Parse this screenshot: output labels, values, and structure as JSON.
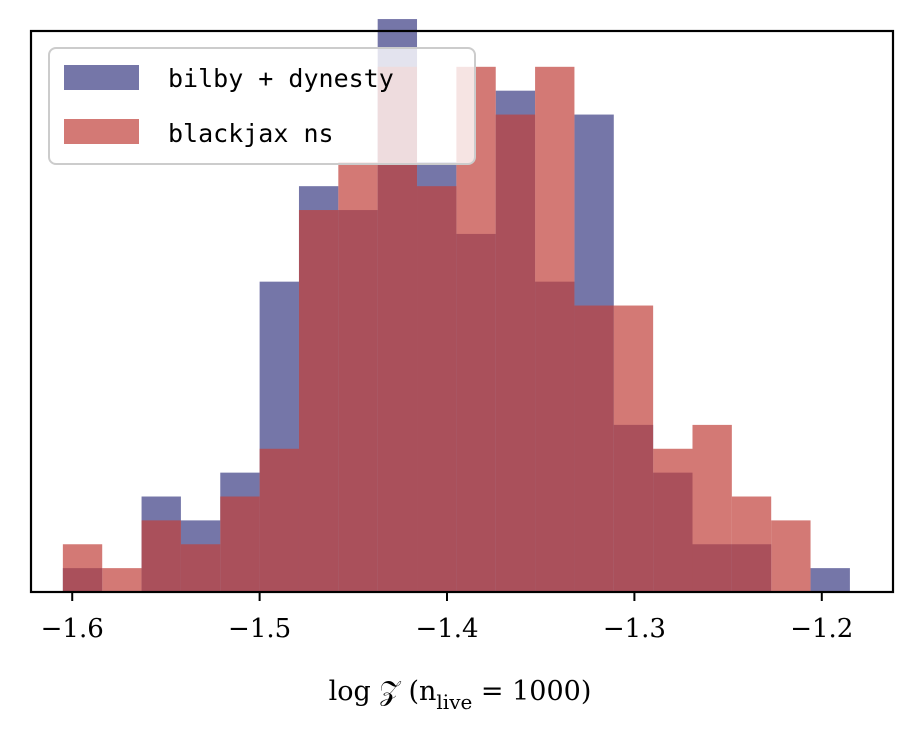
{
  "chart_data": {
    "type": "histogram",
    "title": "",
    "xlabel": "log 𝒵 (n",
    "xlabel_sub": "live",
    "xlabel_tail": " = 1000)",
    "ylabel": "",
    "xlim": [
      -1.622,
      -1.162
    ],
    "ylim": [
      0,
      23.5
    ],
    "xticks": [
      -1.6,
      -1.5,
      -1.4,
      -1.3,
      -1.2
    ],
    "xtick_labels": [
      "−1.6",
      "−1.5",
      "−1.4",
      "−1.3",
      "−1.2"
    ],
    "yticks_shown": false,
    "bin_edges": [
      -1.605,
      -1.584,
      -1.563,
      -1.542,
      -1.521,
      -1.5,
      -1.479,
      -1.458,
      -1.437,
      -1.416,
      -1.395,
      -1.374,
      -1.353,
      -1.332,
      -1.311,
      -1.29,
      -1.269,
      -1.248,
      -1.227,
      -1.206,
      -1.185
    ],
    "series": [
      {
        "name": "bilby + dynesty",
        "color": "#3b3c83",
        "alpha": 0.7,
        "counts": [
          1,
          0,
          4,
          3,
          5,
          13,
          17,
          16,
          24,
          18,
          15,
          21,
          13,
          20,
          7,
          5,
          2,
          2,
          0,
          1
        ]
      },
      {
        "name": "blackjax ns",
        "color": "#c1403b",
        "alpha": 0.7,
        "counts": [
          2,
          1,
          3,
          2,
          4,
          6,
          16,
          18,
          22,
          17,
          22,
          20,
          22,
          12,
          12,
          6,
          7,
          4,
          3,
          0
        ]
      }
    ],
    "legend": {
      "location": "upper-left",
      "entries": [
        "bilby + dynesty",
        "blackjax ns"
      ]
    },
    "grid": false
  }
}
